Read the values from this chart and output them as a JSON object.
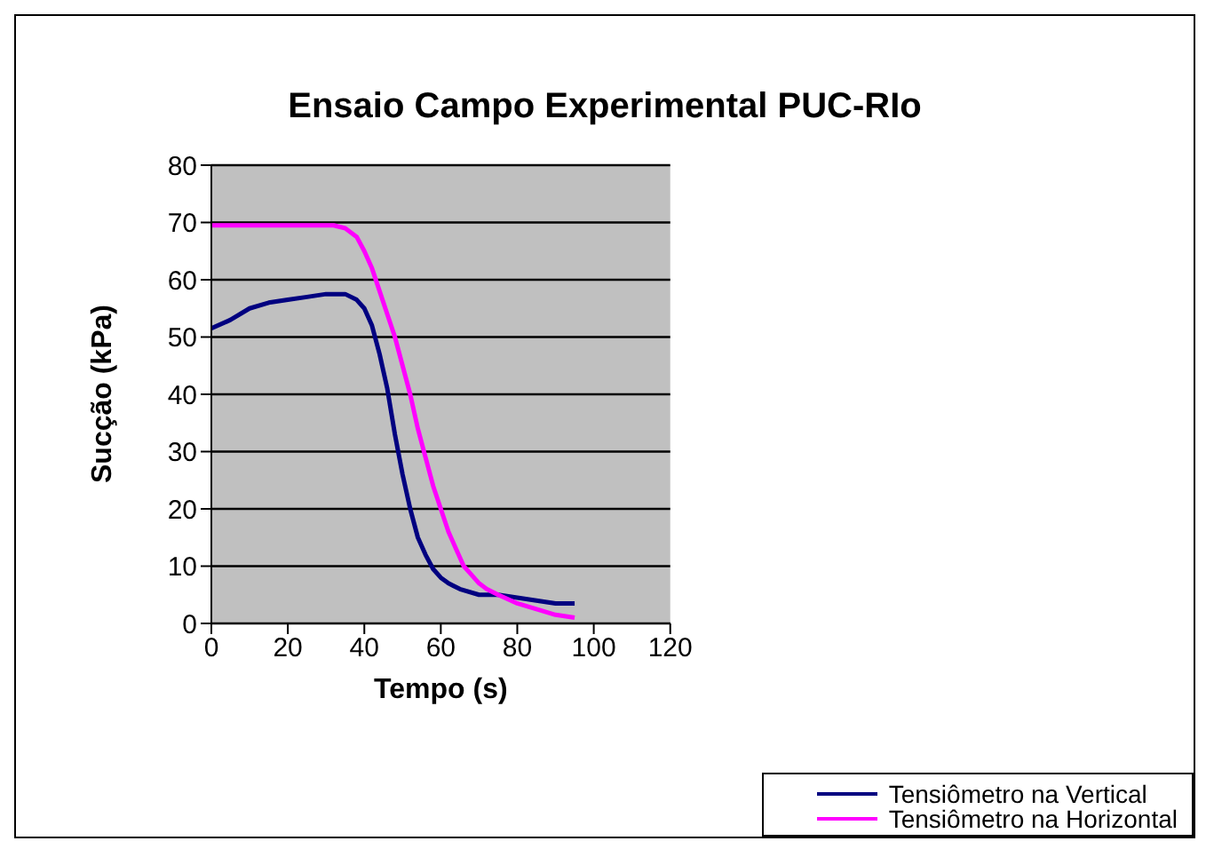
{
  "chart_data": {
    "type": "line",
    "title": "Ensaio Campo Experimental PUC-RIo",
    "xlabel": "Tempo (s)",
    "ylabel": "Sucção (kPa)",
    "xlim": [
      0,
      120
    ],
    "xticks": [
      0,
      20,
      40,
      60,
      80,
      100,
      120
    ],
    "ylim": [
      0,
      80
    ],
    "yticks": [
      0,
      10,
      20,
      30,
      40,
      50,
      60,
      70,
      80
    ],
    "grid": "y",
    "legend": "bottom right",
    "marker": "none",
    "line_style": "solid",
    "series": [
      {
        "name": "Tensiômetro na Vertical",
        "color": "#000080",
        "x": [
          0,
          5,
          10,
          15,
          20,
          25,
          30,
          35,
          38,
          40,
          42,
          44,
          46,
          48,
          50,
          52,
          54,
          56,
          58,
          60,
          62,
          65,
          70,
          75,
          80,
          85,
          90,
          95
        ],
        "values": [
          51.5,
          53,
          55,
          56,
          56.5,
          57,
          57.5,
          57.5,
          56.5,
          55,
          52,
          47,
          41,
          33,
          26,
          20,
          15,
          12,
          9.5,
          8,
          7,
          6,
          5,
          5,
          4.5,
          4,
          3.5,
          3.5
        ]
      },
      {
        "name": "Tensiômetro na Horizontal",
        "color": "#ff00ff",
        "x": [
          0,
          32,
          35,
          38,
          40,
          42,
          44,
          46,
          48,
          50,
          52,
          54,
          56,
          58,
          60,
          62,
          64,
          66,
          68,
          70,
          72,
          75,
          80,
          85,
          90,
          95
        ],
        "values": [
          69.5,
          69.5,
          69,
          67.5,
          65,
          62,
          58,
          54,
          50,
          45,
          40,
          34,
          29,
          24,
          20,
          16,
          13,
          10,
          8.5,
          7,
          6,
          5,
          3.5,
          2.5,
          1.5,
          1
        ]
      }
    ]
  }
}
